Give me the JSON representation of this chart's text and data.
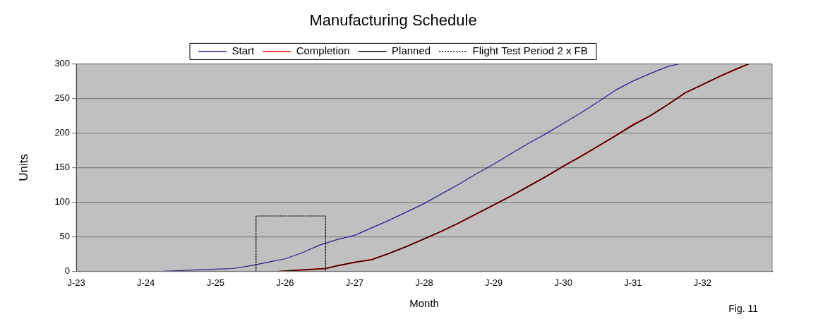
{
  "chart_data": {
    "type": "line",
    "title": "Manufacturing Schedule",
    "xlabel": "Month",
    "ylabel": "Units",
    "x": [
      "2024-04",
      "2024-07",
      "2025-01",
      "2025-04",
      "2025-07",
      "2025-10",
      "2026-01",
      "2026-04",
      "2026-07",
      "2026-10",
      "2027-01",
      "2027-04",
      "2027-07",
      "2027-10",
      "2028-01",
      "2028-04",
      "2028-07",
      "2028-10",
      "2029-01",
      "2029-04",
      "2029-07",
      "2029-10",
      "2030-01",
      "2030-04",
      "2030-07",
      "2030-10",
      "2031-01",
      "2031-04",
      "2031-07",
      "2031-09"
    ],
    "series": [
      {
        "name": "Start",
        "color": "#1f1f8f",
        "values": [
          0,
          1,
          3,
          4,
          8,
          13,
          18,
          27,
          38,
          46,
          52,
          63,
          74,
          86,
          98,
          112,
          126,
          141,
          155,
          170,
          185,
          199,
          214,
          229,
          245,
          262,
          275,
          286,
          296,
          300
        ]
      },
      {
        "name": "Completion",
        "color": "#ff0000",
        "x": [
          "2025-12",
          "2026-04",
          "2026-08",
          "2026-10",
          "2027-01",
          "2027-04",
          "2027-07",
          "2027-10",
          "2028-01",
          "2028-04",
          "2028-07",
          "2028-10",
          "2029-01",
          "2029-04",
          "2029-07",
          "2029-10",
          "2030-01",
          "2030-04",
          "2030-07",
          "2030-10",
          "2031-01",
          "2031-04",
          "2031-07",
          "2031-10",
          "2032-01",
          "2032-04",
          "2032-07",
          "2032-09"
        ],
        "values": [
          0,
          2,
          4,
          8,
          13,
          17,
          26,
          36,
          47,
          58,
          70,
          83,
          96,
          109,
          123,
          137,
          152,
          166,
          181,
          196,
          212,
          225,
          241,
          258,
          270,
          282,
          293,
          300
        ]
      },
      {
        "name": "Planned",
        "color": "#000000",
        "x": [
          "2025-12",
          "2026-04",
          "2026-08",
          "2026-10",
          "2027-01",
          "2027-04",
          "2027-07",
          "2027-10",
          "2028-01",
          "2028-04",
          "2028-07",
          "2028-10",
          "2029-01",
          "2029-04",
          "2029-07",
          "2029-10",
          "2030-01",
          "2030-04",
          "2030-07",
          "2030-10",
          "2031-01",
          "2031-04",
          "2031-07",
          "2031-10",
          "2032-01",
          "2032-04",
          "2032-07",
          "2032-09"
        ],
        "values": [
          0,
          2,
          4,
          8,
          13,
          17,
          26,
          36,
          47,
          58,
          70,
          83,
          96,
          109,
          123,
          137,
          152,
          166,
          181,
          196,
          211,
          225,
          241,
          258,
          270,
          282,
          293,
          300
        ]
      },
      {
        "name": "Flight Test Period 2 x FB",
        "color": "#000000",
        "line_style": "dotted",
        "x": [
          "2025-08",
          "2025-08",
          "2026-08",
          "2026-08"
        ],
        "values": [
          0,
          80,
          80,
          0
        ]
      }
    ],
    "xlim": [
      "2023-01",
      "2033-01"
    ],
    "xticks": [
      {
        "value": "2023-01",
        "label": "J-23"
      },
      {
        "value": "2024-01",
        "label": "J-24"
      },
      {
        "value": "2025-01",
        "label": "J-25"
      },
      {
        "value": "2026-01",
        "label": "J-26"
      },
      {
        "value": "2027-01",
        "label": "J-27"
      },
      {
        "value": "2028-01",
        "label": "J-28"
      },
      {
        "value": "2029-01",
        "label": "J-29"
      },
      {
        "value": "2030-01",
        "label": "J-30"
      },
      {
        "value": "2031-01",
        "label": "J-31"
      },
      {
        "value": "2032-01",
        "label": "J-32"
      }
    ],
    "ylim": [
      0,
      300
    ],
    "yticks": [
      0,
      50,
      100,
      150,
      200,
      250,
      300
    ],
    "grid": "y",
    "legend": "top",
    "marker": "none",
    "line_style": "solid",
    "annotations": [
      "Fig. 11"
    ]
  }
}
